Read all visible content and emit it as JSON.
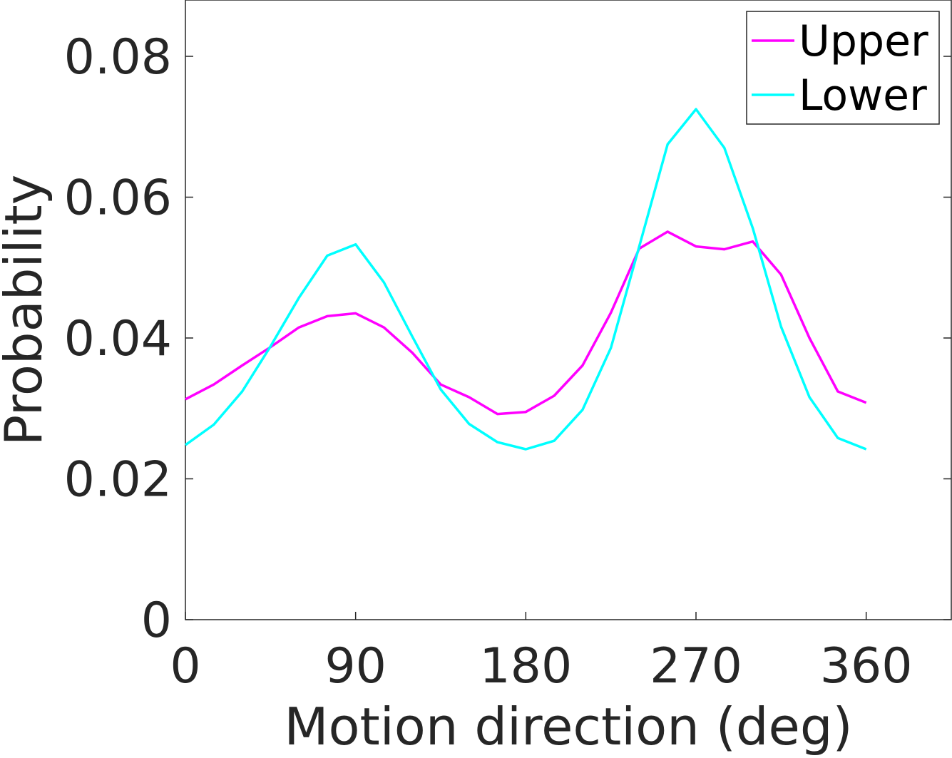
{
  "chart_data": {
    "type": "line",
    "xlabel": "Motion direction (deg)",
    "ylabel": "Probability",
    "xlim": [
      0,
      405
    ],
    "ylim": [
      0,
      0.088
    ],
    "xticks": [
      0,
      90,
      180,
      270,
      360
    ],
    "xtick_labels": [
      "0",
      "90",
      "180",
      "270",
      "360"
    ],
    "yticks": [
      0,
      0.02,
      0.04,
      0.06,
      0.08
    ],
    "ytick_labels": [
      "0",
      "0.02",
      "0.04",
      "0.06",
      "0.08"
    ],
    "grid": false,
    "legend_position": "top-right",
    "x": [
      0,
      15,
      30,
      45,
      60,
      75,
      90,
      105,
      120,
      135,
      150,
      165,
      180,
      195,
      210,
      225,
      240,
      255,
      270,
      285,
      300,
      315,
      330,
      345,
      360
    ],
    "series": [
      {
        "name": "Upper",
        "color": "#ff00ff",
        "values": [
          0.0313,
          0.0334,
          0.0361,
          0.0387,
          0.0415,
          0.0431,
          0.0435,
          0.0415,
          0.0379,
          0.0334,
          0.0316,
          0.0292,
          0.0295,
          0.0318,
          0.0361,
          0.0436,
          0.0527,
          0.0551,
          0.053,
          0.0526,
          0.0537,
          0.049,
          0.04,
          0.0324,
          0.0308
        ]
      },
      {
        "name": "Lower",
        "color": "#00ffff",
        "values": [
          0.0248,
          0.0277,
          0.0324,
          0.0388,
          0.0457,
          0.0517,
          0.0533,
          0.0479,
          0.0402,
          0.0327,
          0.0278,
          0.0252,
          0.0242,
          0.0254,
          0.0298,
          0.0386,
          0.053,
          0.0675,
          0.0725,
          0.067,
          0.0556,
          0.0416,
          0.0316,
          0.0258,
          0.0242
        ]
      }
    ]
  }
}
